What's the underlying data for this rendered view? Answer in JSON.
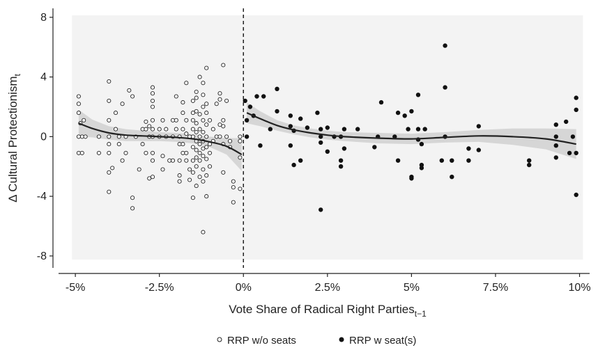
{
  "chart_data": {
    "type": "scatter",
    "xlabel": "Vote Share of Radical Right Parties",
    "xlabel_sub": "t−1",
    "ylabel": "Δ Cultural Protectionism",
    "ylabel_sub": "t",
    "xlim": [
      -5.5,
      10.3
    ],
    "ylim": [
      -8.8,
      8.6
    ],
    "x_ticks": [
      -5,
      -2.5,
      0,
      2.5,
      5,
      7.5,
      10
    ],
    "x_tick_labels": [
      "-5%",
      "-2.5%",
      "0%",
      "2.5%",
      "5%",
      "7.5%",
      "10%"
    ],
    "y_ticks": [
      -8,
      -4,
      0,
      4,
      8
    ],
    "y_tick_labels": [
      "-8",
      "-4",
      "0",
      "4",
      "8"
    ],
    "threshold_x": 0,
    "grid": false,
    "legend_position": "bottom",
    "series": [
      {
        "name": "RRP w/o seats",
        "marker": "open-circle",
        "points": [
          [
            -4.9,
            2.7
          ],
          [
            -4.9,
            2.2
          ],
          [
            -4.9,
            1.6
          ],
          [
            -4.85,
            0.9
          ],
          [
            -4.8,
            0
          ],
          [
            -4.9,
            0
          ],
          [
            -4.7,
            0
          ],
          [
            -4.75,
            1.1
          ],
          [
            -4.9,
            -1.1
          ],
          [
            -4.8,
            -1.1
          ],
          [
            -4.3,
            0
          ],
          [
            -4.3,
            -1.1
          ],
          [
            -4.0,
            3.7
          ],
          [
            -4.0,
            2.4
          ],
          [
            -4.0,
            1.1
          ],
          [
            -4.0,
            0
          ],
          [
            -4.0,
            -0.5
          ],
          [
            -4.0,
            -1.1
          ],
          [
            -4.0,
            -2.4
          ],
          [
            -4.0,
            -3.7
          ],
          [
            -3.9,
            -2.1
          ],
          [
            -3.8,
            1.6
          ],
          [
            -3.8,
            0.5
          ],
          [
            -3.7,
            0
          ],
          [
            -3.7,
            -0.5
          ],
          [
            -3.6,
            2.2
          ],
          [
            -3.6,
            -1.6
          ],
          [
            -3.5,
            -1.1
          ],
          [
            -3.5,
            0
          ],
          [
            -3.4,
            3.1
          ],
          [
            -3.3,
            2.7
          ],
          [
            -3.3,
            -4.1
          ],
          [
            -3.3,
            -4.8
          ],
          [
            -3.2,
            0
          ],
          [
            -3.1,
            -2.2
          ],
          [
            -3.0,
            -0.5
          ],
          [
            -3.0,
            0.5
          ],
          [
            -2.9,
            1.0
          ],
          [
            -2.9,
            0.5
          ],
          [
            -2.9,
            -1.1
          ],
          [
            -2.8,
            0.7
          ],
          [
            -2.8,
            0
          ],
          [
            -2.8,
            -2.8
          ],
          [
            -2.7,
            3.3
          ],
          [
            -2.7,
            2.9
          ],
          [
            -2.7,
            2.4
          ],
          [
            -2.7,
            2.0
          ],
          [
            -2.7,
            1.1
          ],
          [
            -2.7,
            0.5
          ],
          [
            -2.7,
            0
          ],
          [
            -2.7,
            -1.1
          ],
          [
            -2.7,
            -1.6
          ],
          [
            -2.7,
            -2.7
          ],
          [
            -2.5,
            0.5
          ],
          [
            -2.5,
            0
          ],
          [
            -2.4,
            1.1
          ],
          [
            -2.4,
            -1.3
          ],
          [
            -2.4,
            -2.2
          ],
          [
            -2.3,
            0
          ],
          [
            -2.3,
            0.5
          ],
          [
            -2.2,
            -1.6
          ],
          [
            -2.1,
            1.1
          ],
          [
            -2.1,
            0
          ],
          [
            -2.1,
            -1.6
          ],
          [
            -2.0,
            2.7
          ],
          [
            -2.0,
            1.1
          ],
          [
            -2.0,
            0.5
          ],
          [
            -1.9,
            0
          ],
          [
            -1.9,
            -0.5
          ],
          [
            -1.9,
            -1.6
          ],
          [
            -1.9,
            -2.6
          ],
          [
            -1.9,
            -3.0
          ],
          [
            -1.8,
            2.3
          ],
          [
            -1.8,
            1.6
          ],
          [
            -1.8,
            0.5
          ],
          [
            -1.8,
            -0.5
          ],
          [
            -1.8,
            -1.1
          ],
          [
            -1.7,
            3.6
          ],
          [
            -1.7,
            1.1
          ],
          [
            -1.7,
            0.2
          ],
          [
            -1.7,
            -1.1
          ],
          [
            -1.7,
            -1.6
          ],
          [
            -1.6,
            0
          ],
          [
            -1.6,
            -2.2
          ],
          [
            -1.6,
            -2.9
          ],
          [
            -1.5,
            2.4
          ],
          [
            -1.5,
            1.6
          ],
          [
            -1.5,
            1.1
          ],
          [
            -1.5,
            0.5
          ],
          [
            -1.5,
            0
          ],
          [
            -1.5,
            -0.7
          ],
          [
            -1.5,
            -1.6
          ],
          [
            -1.5,
            -2.4
          ],
          [
            -1.5,
            -4.1
          ],
          [
            -1.4,
            3.0
          ],
          [
            -1.4,
            2.6
          ],
          [
            -1.4,
            1.7
          ],
          [
            -1.4,
            0.9
          ],
          [
            -1.4,
            0.3
          ],
          [
            -1.4,
            -0.3
          ],
          [
            -1.4,
            -0.9
          ],
          [
            -1.4,
            -1.4
          ],
          [
            -1.4,
            -2.0
          ],
          [
            -1.4,
            -3.3
          ],
          [
            -1.3,
            4.0
          ],
          [
            -1.3,
            1.5
          ],
          [
            -1.3,
            0.5
          ],
          [
            -1.3,
            0
          ],
          [
            -1.3,
            -0.5
          ],
          [
            -1.3,
            -1.1
          ],
          [
            -1.3,
            -1.6
          ],
          [
            -1.3,
            -2.7
          ],
          [
            -1.2,
            3.6
          ],
          [
            -1.2,
            2.8
          ],
          [
            -1.2,
            2.0
          ],
          [
            -1.2,
            1.1
          ],
          [
            -1.2,
            0.3
          ],
          [
            -1.2,
            -0.3
          ],
          [
            -1.2,
            -0.8
          ],
          [
            -1.2,
            -1.3
          ],
          [
            -1.2,
            -2.2
          ],
          [
            -1.2,
            -3.0
          ],
          [
            -1.2,
            -6.4
          ],
          [
            -1.1,
            4.6
          ],
          [
            -1.1,
            2.2
          ],
          [
            -1.1,
            1.6
          ],
          [
            -1.1,
            0.8
          ],
          [
            -1.1,
            0
          ],
          [
            -1.1,
            -0.7
          ],
          [
            -1.1,
            -1.5
          ],
          [
            -1.1,
            -2.6
          ],
          [
            -1.1,
            -4.0
          ],
          [
            -1.0,
            1.1
          ],
          [
            -1.0,
            -0.5
          ],
          [
            -1.0,
            -1.1
          ],
          [
            -1.0,
            -2.0
          ],
          [
            -0.9,
            0.5
          ],
          [
            -0.9,
            -0.3
          ],
          [
            -0.8,
            2.2
          ],
          [
            -0.8,
            0
          ],
          [
            -0.7,
            2.9
          ],
          [
            -0.7,
            2.5
          ],
          [
            -0.7,
            0.8
          ],
          [
            -0.7,
            0
          ],
          [
            -0.6,
            4.8
          ],
          [
            -0.6,
            1.1
          ],
          [
            -0.6,
            0.7
          ],
          [
            -0.6,
            -0.5
          ],
          [
            -0.6,
            -2.4
          ],
          [
            -0.5,
            2.4
          ],
          [
            -0.5,
            0
          ],
          [
            -0.4,
            -0.3
          ],
          [
            -0.4,
            -0.7
          ],
          [
            -0.3,
            -3.0
          ],
          [
            -0.3,
            -3.4
          ],
          [
            -0.3,
            -4.4
          ],
          [
            -0.1,
            0
          ],
          [
            -0.1,
            -0.3
          ],
          [
            -0.1,
            -1.4
          ],
          [
            -0.1,
            -3.5
          ]
        ]
      },
      {
        "name": "RRP w seat(s)",
        "marker": "filled-circle",
        "points": [
          [
            0.05,
            2.4
          ],
          [
            0.1,
            1.1
          ],
          [
            0.1,
            0
          ],
          [
            0.2,
            2.0
          ],
          [
            0.3,
            1.4
          ],
          [
            0.4,
            2.7
          ],
          [
            0.5,
            -0.6
          ],
          [
            0.6,
            2.7
          ],
          [
            0.8,
            0.5
          ],
          [
            1.0,
            3.2
          ],
          [
            1.0,
            1.7
          ],
          [
            1.4,
            1.4
          ],
          [
            1.4,
            0.7
          ],
          [
            1.4,
            -0.6
          ],
          [
            1.5,
            -1.9
          ],
          [
            1.5,
            0.4
          ],
          [
            1.7,
            1.2
          ],
          [
            1.7,
            -1.6
          ],
          [
            1.9,
            0.6
          ],
          [
            2.2,
            1.6
          ],
          [
            2.3,
            0.5
          ],
          [
            2.3,
            0
          ],
          [
            2.3,
            -0.4
          ],
          [
            2.3,
            -4.9
          ],
          [
            2.5,
            -1.0
          ],
          [
            2.5,
            0.6
          ],
          [
            2.7,
            0
          ],
          [
            2.9,
            0
          ],
          [
            2.9,
            -1.6
          ],
          [
            2.9,
            -2.0
          ],
          [
            3.0,
            0.5
          ],
          [
            3.0,
            -0.8
          ],
          [
            3.4,
            0.5
          ],
          [
            3.9,
            -0.7
          ],
          [
            4.0,
            0
          ],
          [
            4.1,
            2.3
          ],
          [
            4.5,
            0
          ],
          [
            4.6,
            1.6
          ],
          [
            4.6,
            -1.6
          ],
          [
            4.8,
            1.4
          ],
          [
            4.9,
            0.5
          ],
          [
            5.0,
            1.7
          ],
          [
            5.0,
            -2.7
          ],
          [
            5.0,
            -2.8
          ],
          [
            5.2,
            2.8
          ],
          [
            5.2,
            0.5
          ],
          [
            5.2,
            -0.2
          ],
          [
            5.3,
            -0.5
          ],
          [
            5.3,
            -1.9
          ],
          [
            5.3,
            -2.1
          ],
          [
            5.4,
            0.5
          ],
          [
            5.9,
            -1.6
          ],
          [
            6.0,
            6.1
          ],
          [
            6.0,
            3.3
          ],
          [
            6.0,
            0
          ],
          [
            6.2,
            -1.6
          ],
          [
            6.2,
            -2.7
          ],
          [
            6.7,
            -0.8
          ],
          [
            6.7,
            -1.6
          ],
          [
            7.0,
            0.7
          ],
          [
            7.0,
            -0.9
          ],
          [
            8.5,
            -1.6
          ],
          [
            8.5,
            -1.9
          ],
          [
            9.3,
            0.8
          ],
          [
            9.3,
            0
          ],
          [
            9.3,
            -0.6
          ],
          [
            9.3,
            -1.4
          ],
          [
            9.6,
            1.0
          ],
          [
            9.7,
            -1.1
          ],
          [
            9.8,
            0
          ],
          [
            9.9,
            2.6
          ],
          [
            9.9,
            1.8
          ],
          [
            9.9,
            -1.1
          ],
          [
            9.9,
            -3.9
          ]
        ]
      }
    ],
    "fit_left": {
      "x": [
        -4.9,
        -4.5,
        -4.0,
        -3.5,
        -3.0,
        -2.5,
        -2.0,
        -1.5,
        -1.0,
        -0.5,
        -0.05
      ],
      "y": [
        0.9,
        0.55,
        0.25,
        0.1,
        0.05,
        0.0,
        -0.05,
        -0.15,
        -0.35,
        -0.65,
        -1.2
      ],
      "ci_lower": [
        0.0,
        -0.05,
        -0.2,
        -0.3,
        -0.3,
        -0.3,
        -0.35,
        -0.45,
        -0.7,
        -1.2,
        -2.3
      ],
      "ci_upper": [
        1.8,
        1.15,
        0.7,
        0.5,
        0.4,
        0.3,
        0.25,
        0.15,
        0.0,
        -0.1,
        -0.1
      ]
    },
    "fit_right": {
      "x": [
        0.1,
        0.5,
        1.0,
        1.5,
        2.0,
        2.5,
        3.0,
        4.0,
        5.0,
        6.0,
        7.0,
        8.0,
        9.0,
        9.9
      ],
      "y": [
        1.6,
        1.2,
        0.75,
        0.45,
        0.25,
        0.1,
        0.0,
        -0.1,
        -0.15,
        -0.05,
        0.05,
        0.0,
        -0.15,
        -0.5
      ],
      "ci_lower": [
        0.9,
        0.7,
        0.4,
        0.15,
        -0.05,
        -0.2,
        -0.3,
        -0.45,
        -0.5,
        -0.4,
        -0.35,
        -0.55,
        -0.85,
        -1.5
      ],
      "ci_upper": [
        2.3,
        1.7,
        1.1,
        0.75,
        0.55,
        0.4,
        0.3,
        0.25,
        0.2,
        0.3,
        0.45,
        0.55,
        0.55,
        0.5
      ]
    }
  }
}
